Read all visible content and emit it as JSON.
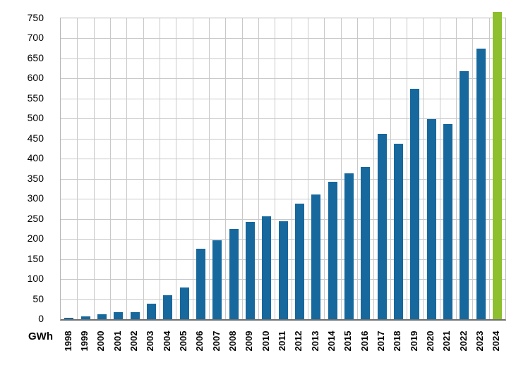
{
  "chart_data": {
    "type": "bar",
    "title": "",
    "xlabel": "",
    "ylabel": "GWh",
    "categories": [
      "1998",
      "1999",
      "2000",
      "2001",
      "2002",
      "2003",
      "2004",
      "2005",
      "2006",
      "2007",
      "2008",
      "2009",
      "2010",
      "2011",
      "2012",
      "2013",
      "2014",
      "2015",
      "2016",
      "2017",
      "2018",
      "2019",
      "2020",
      "2021",
      "2022",
      "2023",
      "2024"
    ],
    "values": [
      4,
      7,
      13,
      18,
      17,
      38,
      60,
      79,
      175,
      197,
      225,
      243,
      257,
      244,
      288,
      311,
      342,
      363,
      380,
      462,
      437,
      575,
      499,
      486,
      619,
      675,
      765
    ],
    "ylim": [
      0,
      750
    ],
    "ytick_step": 50,
    "y_tick_labels": [
      "0",
      "50",
      "100",
      "150",
      "200",
      "250",
      "300",
      "350",
      "400",
      "450",
      "500",
      "550",
      "600",
      "650",
      "700",
      "750"
    ],
    "grid": true,
    "legend": "none",
    "highlight_category": "2024",
    "colors": {
      "bar_default": "#16689d",
      "bar_highlight": "#8dbf2e",
      "gridline": "#c9c9c9",
      "frame": "#b5b5b5",
      "axis_line": "#6f6f6f",
      "text": "#000000"
    }
  }
}
